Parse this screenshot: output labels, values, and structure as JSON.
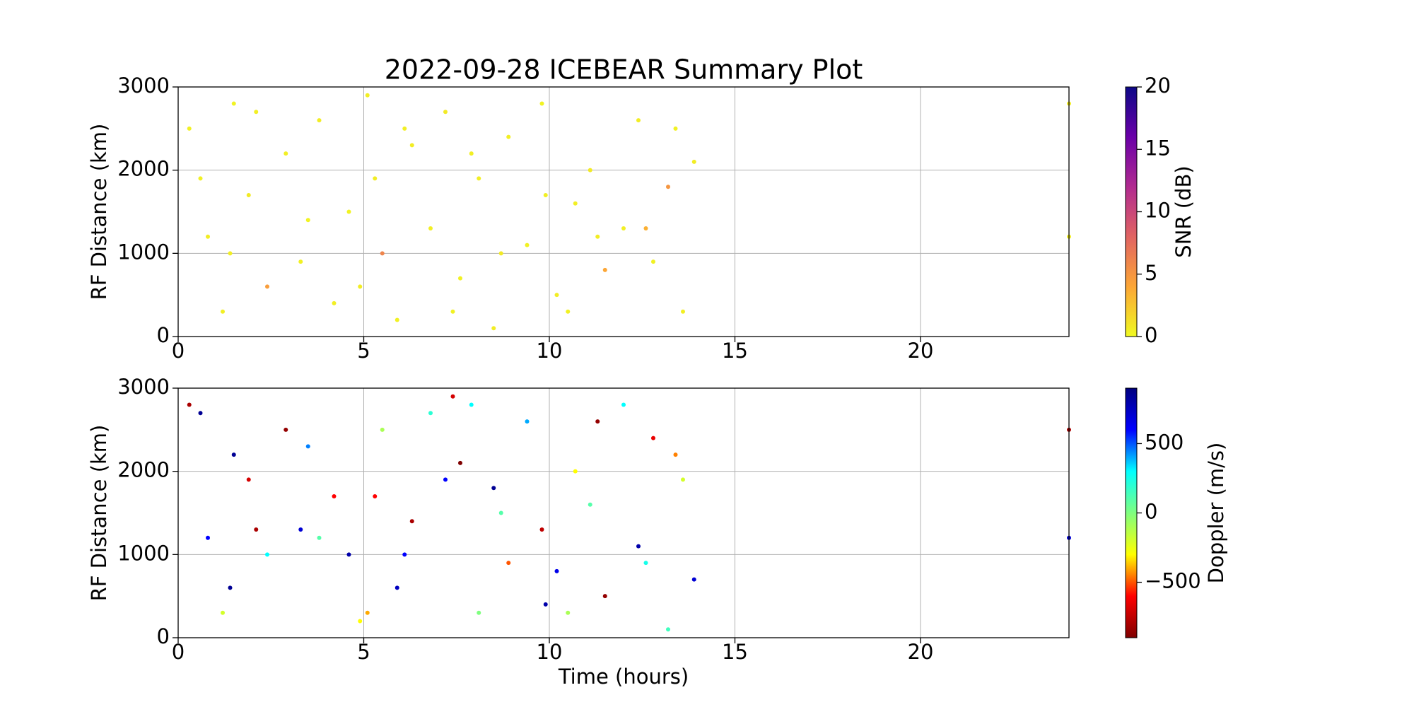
{
  "chart_data": [
    {
      "type": "scatter",
      "title": "2022-09-28 ICEBEAR Summary Plot",
      "ylabel": "RF Distance (km)",
      "xlim": [
        0,
        24
      ],
      "xticks": [
        0,
        5,
        10,
        15,
        20
      ],
      "ylim": [
        0,
        3000
      ],
      "yticks": [
        0,
        1000,
        2000,
        3000
      ],
      "grid": true,
      "x": [
        0.3,
        0.8,
        1.2,
        1.5,
        1.9,
        2.4,
        2.9,
        3.3,
        3.8,
        4.2,
        4.6,
        5.1,
        5.5,
        5.9,
        6.3,
        6.8,
        7.2,
        7.6,
        8.1,
        8.5,
        8.9,
        9.4,
        9.8,
        10.2,
        10.7,
        11.1,
        11.5,
        12.0,
        12.4,
        12.8,
        13.2,
        13.6,
        13.9,
        0.6,
        2.1,
        3.5,
        4.9,
        6.1,
        7.4,
        8.7,
        9.9,
        11.3,
        12.6,
        13.4,
        1.4,
        5.3,
        7.9,
        10.5,
        24.0,
        24.0
      ],
      "y": [
        2500,
        1200,
        300,
        2800,
        1700,
        600,
        2200,
        900,
        2600,
        400,
        1500,
        2900,
        1000,
        200,
        2300,
        1300,
        2700,
        700,
        1900,
        100,
        2400,
        1100,
        2800,
        500,
        1600,
        2000,
        800,
        1300,
        2600,
        900,
        1800,
        300,
        2100,
        1900,
        2700,
        1400,
        600,
        2500,
        300,
        1000,
        1700,
        1200,
        1300,
        2500,
        1000,
        1900,
        2200,
        300,
        1200,
        2800
      ],
      "c": [
        0.4,
        0.6,
        0.5,
        0.3,
        0.7,
        4.5,
        0.5,
        0.4,
        0.6,
        0.5,
        0.3,
        0.5,
        6,
        0.4,
        0.6,
        0.5,
        0.7,
        0.4,
        0.5,
        0.6,
        0.5,
        0.4,
        0.3,
        0.6,
        0.5,
        0.7,
        4,
        0.5,
        0.6,
        0.4,
        5,
        0.5,
        0.6,
        0.4,
        0.5,
        0.3,
        0.6,
        0.5,
        0.4,
        0.7,
        0.5,
        0.6,
        3.5,
        0.4,
        0.5,
        0.6,
        0.5,
        0.4,
        0.5,
        0.6
      ],
      "colormap": "plasma_r",
      "clim": [
        0,
        20
      ],
      "cticks": [
        0,
        5,
        10,
        15,
        20
      ],
      "colorbar_label": "SNR (dB)"
    },
    {
      "type": "scatter",
      "xlabel": "Time (hours)",
      "ylabel": "RF Distance (km)",
      "xlim": [
        0,
        24
      ],
      "xticks": [
        0,
        5,
        10,
        15,
        20
      ],
      "ylim": [
        0,
        3000
      ],
      "yticks": [
        0,
        1000,
        2000,
        3000
      ],
      "grid": true,
      "x": [
        0.3,
        0.8,
        1.2,
        1.5,
        1.9,
        2.4,
        2.9,
        3.3,
        3.8,
        4.2,
        4.6,
        5.1,
        5.5,
        5.9,
        6.3,
        6.8,
        7.2,
        7.6,
        8.1,
        8.5,
        8.9,
        9.4,
        9.8,
        10.2,
        10.7,
        11.1,
        11.5,
        12.0,
        12.4,
        12.8,
        13.2,
        13.6,
        13.9,
        0.6,
        2.1,
        3.5,
        4.9,
        6.1,
        7.4,
        8.7,
        9.9,
        11.3,
        12.6,
        13.4,
        1.4,
        5.3,
        7.9,
        10.5,
        24.0,
        24.0
      ],
      "y": [
        2800,
        1200,
        300,
        2200,
        1900,
        1000,
        2500,
        1300,
        1200,
        1700,
        1000,
        300,
        2500,
        600,
        1400,
        2700,
        1900,
        2100,
        300,
        1800,
        900,
        2600,
        1300,
        800,
        2000,
        1600,
        500,
        2800,
        1100,
        2400,
        100,
        1900,
        700,
        2700,
        1300,
        2300,
        200,
        1000,
        2900,
        1500,
        400,
        2600,
        900,
        2200,
        600,
        1700,
        2800,
        300,
        1200,
        2500
      ],
      "c": [
        -800,
        600,
        -200,
        850,
        -700,
        300,
        -850,
        700,
        100,
        -600,
        800,
        -400,
        -100,
        750,
        -800,
        200,
        600,
        -900,
        0,
        850,
        -500,
        400,
        -750,
        650,
        -300,
        100,
        -850,
        300,
        800,
        -650,
        150,
        -200,
        700,
        850,
        -800,
        450,
        -300,
        600,
        -700,
        100,
        800,
        -850,
        250,
        -450,
        850,
        -600,
        300,
        -100,
        700,
        -800
      ],
      "colormap": "jet_r",
      "clim": [
        -900,
        900
      ],
      "cticks": [
        {
          "value": -500,
          "label": "−500"
        },
        0,
        500
      ],
      "colorbar_label": "Doppler (m/s)"
    }
  ]
}
